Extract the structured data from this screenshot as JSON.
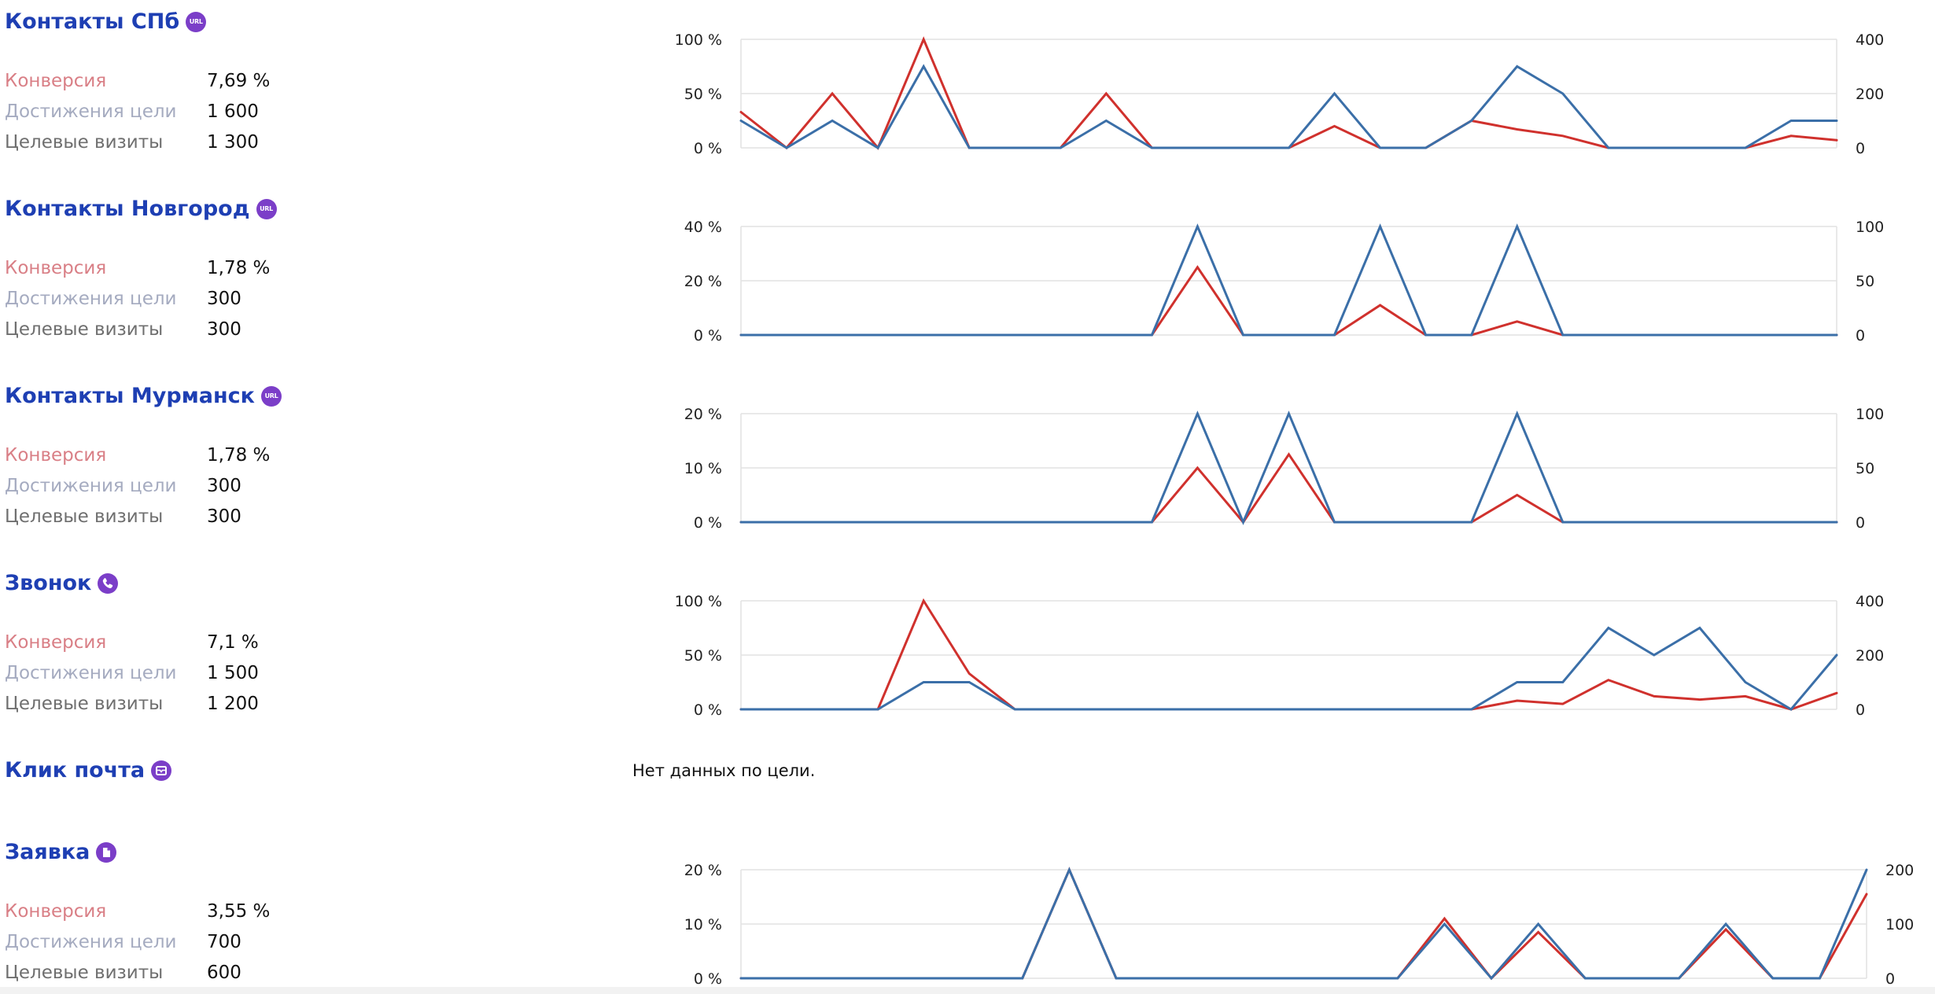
{
  "colors": {
    "title": "#1e3fb3",
    "badge": "#7b3ec8",
    "conversion_label": "#d97f86",
    "reach_label": "#a5abc0",
    "visits_label": "#6f6f6f",
    "conversion_line": "#d0312d",
    "visits_line": "#3b6fa8",
    "grid": "#e2e2e2"
  },
  "labels": {
    "conversion": "Конверсия",
    "reach": "Достижения цели",
    "visits": "Целевые визиты"
  },
  "goals": [
    {
      "title": "Контакты СПб",
      "icon": "url-icon",
      "badge_text": "URL",
      "conversion": "7,69 %",
      "reach": "1 600",
      "visits": "1 300"
    },
    {
      "title": "Контакты Новгород",
      "icon": "url-icon",
      "badge_text": "URL",
      "conversion": "1,78 %",
      "reach": "300",
      "visits": "300"
    },
    {
      "title": "Контакты Мурманск",
      "icon": "url-icon",
      "badge_text": "URL",
      "conversion": "1,78 %",
      "reach": "300",
      "visits": "300"
    },
    {
      "title": "Звонок",
      "icon": "phone-icon",
      "conversion": "7,1 %",
      "reach": "1 500",
      "visits": "1 200"
    },
    {
      "title": "Клик почта",
      "icon": "mail-icon",
      "nodata": "Нет данных по цели."
    },
    {
      "title": "Заявка",
      "icon": "document-icon",
      "conversion": "3,55 %",
      "reach": "700",
      "visits": "600"
    }
  ],
  "chart_data": [
    {
      "type": "line",
      "left_axis": {
        "ticks": [
          0,
          50,
          100
        ],
        "tick_labels": [
          "0 %",
          "50 %",
          "100 %"
        ],
        "range": [
          0,
          100
        ]
      },
      "right_axis": {
        "ticks": [
          0,
          200,
          400
        ],
        "tick_labels": [
          "0",
          "200",
          "400"
        ],
        "range": [
          0,
          400
        ]
      },
      "grid": true,
      "legend": "none",
      "points": 25,
      "series": [
        {
          "axis": "left",
          "color": "#d0312d",
          "values": [
            33,
            0,
            50,
            0,
            100,
            0,
            0,
            0,
            50,
            0,
            0,
            0,
            0,
            20,
            0,
            0,
            25,
            17,
            11,
            0,
            0,
            0,
            0,
            11,
            7
          ]
        },
        {
          "axis": "right",
          "color": "#3b6fa8",
          "values": [
            100,
            0,
            100,
            0,
            300,
            0,
            0,
            0,
            100,
            0,
            0,
            0,
            0,
            200,
            0,
            0,
            100,
            300,
            200,
            0,
            0,
            0,
            0,
            100,
            100
          ]
        }
      ]
    },
    {
      "type": "line",
      "left_axis": {
        "ticks": [
          0,
          20,
          40
        ],
        "tick_labels": [
          "0 %",
          "20 %",
          "40 %"
        ],
        "range": [
          0,
          40
        ]
      },
      "right_axis": {
        "ticks": [
          0,
          50,
          100
        ],
        "tick_labels": [
          "0",
          "50",
          "100"
        ],
        "range": [
          0,
          100
        ]
      },
      "grid": true,
      "legend": "none",
      "points": 25,
      "series": [
        {
          "axis": "left",
          "color": "#d0312d",
          "values": [
            0,
            0,
            0,
            0,
            0,
            0,
            0,
            0,
            0,
            0,
            25,
            0,
            0,
            0,
            11,
            0,
            0,
            5,
            0,
            0,
            0,
            0,
            0,
            0,
            0
          ]
        },
        {
          "axis": "right",
          "color": "#3b6fa8",
          "values": [
            0,
            0,
            0,
            0,
            0,
            0,
            0,
            0,
            0,
            0,
            100,
            0,
            0,
            0,
            100,
            0,
            0,
            100,
            0,
            0,
            0,
            0,
            0,
            0,
            0
          ]
        }
      ]
    },
    {
      "type": "line",
      "left_axis": {
        "ticks": [
          0,
          10,
          20
        ],
        "tick_labels": [
          "0 %",
          "10 %",
          "20 %"
        ],
        "range": [
          0,
          20
        ]
      },
      "right_axis": {
        "ticks": [
          0,
          50,
          100
        ],
        "tick_labels": [
          "0",
          "50",
          "100"
        ],
        "range": [
          0,
          100
        ]
      },
      "grid": true,
      "legend": "none",
      "points": 25,
      "series": [
        {
          "axis": "left",
          "color": "#d0312d",
          "values": [
            0,
            0,
            0,
            0,
            0,
            0,
            0,
            0,
            0,
            0,
            10,
            0,
            12.5,
            0,
            0,
            0,
            0,
            5,
            0,
            0,
            0,
            0,
            0,
            0,
            0
          ]
        },
        {
          "axis": "right",
          "color": "#3b6fa8",
          "values": [
            0,
            0,
            0,
            0,
            0,
            0,
            0,
            0,
            0,
            0,
            100,
            0,
            100,
            0,
            0,
            0,
            0,
            100,
            0,
            0,
            0,
            0,
            0,
            0,
            0
          ]
        }
      ]
    },
    {
      "type": "line",
      "left_axis": {
        "ticks": [
          0,
          50,
          100
        ],
        "tick_labels": [
          "0 %",
          "50 %",
          "100 %"
        ],
        "range": [
          0,
          100
        ]
      },
      "right_axis": {
        "ticks": [
          0,
          200,
          400
        ],
        "tick_labels": [
          "0",
          "200",
          "400"
        ],
        "range": [
          0,
          400
        ]
      },
      "grid": true,
      "legend": "none",
      "points": 25,
      "series": [
        {
          "axis": "left",
          "color": "#d0312d",
          "values": [
            0,
            0,
            0,
            0,
            100,
            33,
            0,
            0,
            0,
            0,
            0,
            0,
            0,
            0,
            0,
            0,
            0,
            8,
            5,
            27,
            12,
            9,
            12,
            0,
            15
          ]
        },
        {
          "axis": "right",
          "color": "#3b6fa8",
          "values": [
            0,
            0,
            0,
            0,
            100,
            100,
            0,
            0,
            0,
            0,
            0,
            0,
            0,
            0,
            0,
            0,
            0,
            100,
            100,
            300,
            200,
            300,
            100,
            0,
            200
          ]
        }
      ]
    },
    {
      "type": "line",
      "left_axis": {
        "ticks": [
          0,
          10,
          20
        ],
        "tick_labels": [
          "0 %",
          "10 %",
          "20 %"
        ],
        "range": [
          0,
          20
        ]
      },
      "right_axis": {
        "ticks": [
          0,
          100,
          200
        ],
        "tick_labels": [
          "0",
          "100",
          "200"
        ],
        "range": [
          0,
          200
        ]
      },
      "grid": true,
      "legend": "none",
      "points": 25,
      "series": [
        {
          "axis": "left",
          "color": "#d0312d",
          "values": [
            0,
            0,
            0,
            0,
            0,
            0,
            0,
            20,
            0,
            0,
            0,
            0,
            0,
            0,
            0,
            11,
            0,
            8.5,
            0,
            0,
            0,
            9,
            0,
            0,
            15.5
          ]
        },
        {
          "axis": "right",
          "color": "#3b6fa8",
          "values": [
            0,
            0,
            0,
            0,
            0,
            0,
            0,
            200,
            0,
            0,
            0,
            0,
            0,
            0,
            0,
            100,
            0,
            100,
            0,
            0,
            0,
            100,
            0,
            0,
            200
          ]
        }
      ]
    }
  ]
}
